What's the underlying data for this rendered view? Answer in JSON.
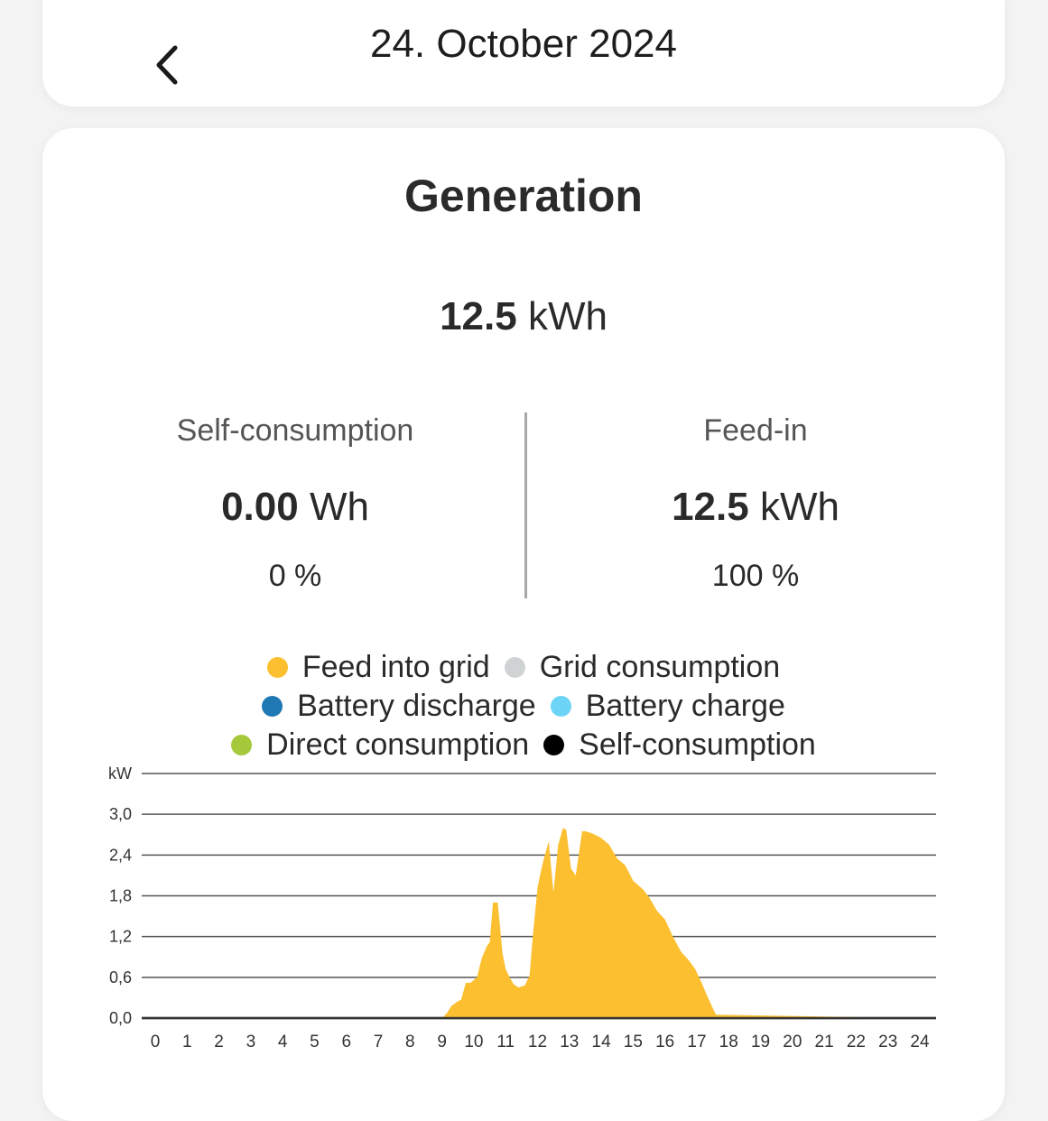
{
  "header": {
    "date": "24. October 2024"
  },
  "generation": {
    "title": "Generation",
    "total_value": "12.5",
    "total_unit": "kWh",
    "self_consumption": {
      "label": "Self-consumption",
      "value": "0.00",
      "unit": "Wh",
      "percent": "0 %"
    },
    "feed_in": {
      "label": "Feed-in",
      "value": "12.5",
      "unit": "kWh",
      "percent": "100 %"
    }
  },
  "colors": {
    "feed_into_grid": "#fbbf2f",
    "grid_consumption": "#d0d3d4",
    "battery_discharge": "#1f78b4",
    "battery_charge": "#6cd4f4",
    "direct_consumption": "#a5c93a",
    "self_consumption": "#000000"
  },
  "legend": [
    [
      {
        "label": "Feed into grid",
        "color": "#fbbf2f"
      },
      {
        "label": "Grid consumption",
        "color": "#d0d3d4"
      }
    ],
    [
      {
        "label": "Battery discharge",
        "color": "#1f78b4"
      },
      {
        "label": "Battery charge",
        "color": "#6cd4f4"
      }
    ],
    [
      {
        "label": "Direct consumption",
        "color": "#a5c93a"
      },
      {
        "label": "Self-consumption",
        "color": "#000000"
      }
    ]
  ],
  "chart_data": {
    "type": "area",
    "ylabel": "kW",
    "ylim": [
      0,
      3.6
    ],
    "yticks": [
      "0,0",
      "0,6",
      "1,2",
      "1,8",
      "2,4",
      "3,0"
    ],
    "ytick_values": [
      0,
      0.6,
      1.2,
      1.8,
      2.4,
      3.0
    ],
    "xlim": [
      0,
      24
    ],
    "xticks": [
      "0",
      "1",
      "2",
      "3",
      "4",
      "5",
      "6",
      "7",
      "8",
      "9",
      "10",
      "11",
      "12",
      "13",
      "14",
      "15",
      "16",
      "17",
      "18",
      "19",
      "20",
      "21",
      "22",
      "23",
      "24"
    ],
    "grid": true,
    "series": [
      {
        "name": "Feed into grid",
        "color": "#fbbf2f",
        "x": [
          0,
          9.0,
          9.15,
          9.3,
          9.5,
          9.6,
          9.75,
          9.9,
          10.1,
          10.25,
          10.4,
          10.5,
          10.6,
          10.75,
          10.9,
          11.0,
          11.1,
          11.25,
          11.4,
          11.6,
          11.75,
          11.85,
          12.0,
          12.1,
          12.2,
          12.35,
          12.5,
          12.65,
          12.8,
          12.9,
          13.05,
          13.2,
          13.4,
          13.5,
          13.65,
          13.8,
          14.0,
          14.25,
          14.5,
          14.75,
          15.0,
          15.3,
          15.5,
          15.75,
          16.0,
          16.25,
          16.5,
          16.75,
          16.95,
          17.15,
          17.35,
          17.45,
          17.6,
          24
        ],
        "y": [
          0,
          0,
          0.07,
          0.18,
          0.25,
          0.27,
          0.52,
          0.52,
          0.6,
          0.88,
          1.05,
          1.12,
          1.7,
          1.7,
          0.95,
          0.72,
          0.62,
          0.5,
          0.45,
          0.48,
          0.63,
          1.2,
          1.92,
          2.15,
          2.35,
          2.6,
          1.85,
          2.55,
          2.8,
          2.77,
          2.2,
          2.1,
          2.75,
          2.75,
          2.73,
          2.7,
          2.65,
          2.55,
          2.35,
          2.25,
          2.02,
          1.9,
          1.78,
          1.58,
          1.45,
          1.2,
          0.98,
          0.85,
          0.72,
          0.52,
          0.3,
          0.2,
          0.05,
          0
        ]
      },
      {
        "name": "Grid consumption",
        "color": "#d0d3d4",
        "x": [
          0,
          24
        ],
        "y": [
          0,
          0
        ]
      },
      {
        "name": "Battery discharge",
        "color": "#1f78b4",
        "x": [
          0,
          24
        ],
        "y": [
          0,
          0
        ]
      },
      {
        "name": "Battery charge",
        "color": "#6cd4f4",
        "x": [
          0,
          24
        ],
        "y": [
          0,
          0
        ]
      },
      {
        "name": "Direct consumption",
        "color": "#a5c93a",
        "x": [
          0,
          24
        ],
        "y": [
          0,
          0
        ]
      },
      {
        "name": "Self-consumption",
        "color": "#000000",
        "x": [
          0,
          24
        ],
        "y": [
          0,
          0
        ]
      }
    ]
  }
}
